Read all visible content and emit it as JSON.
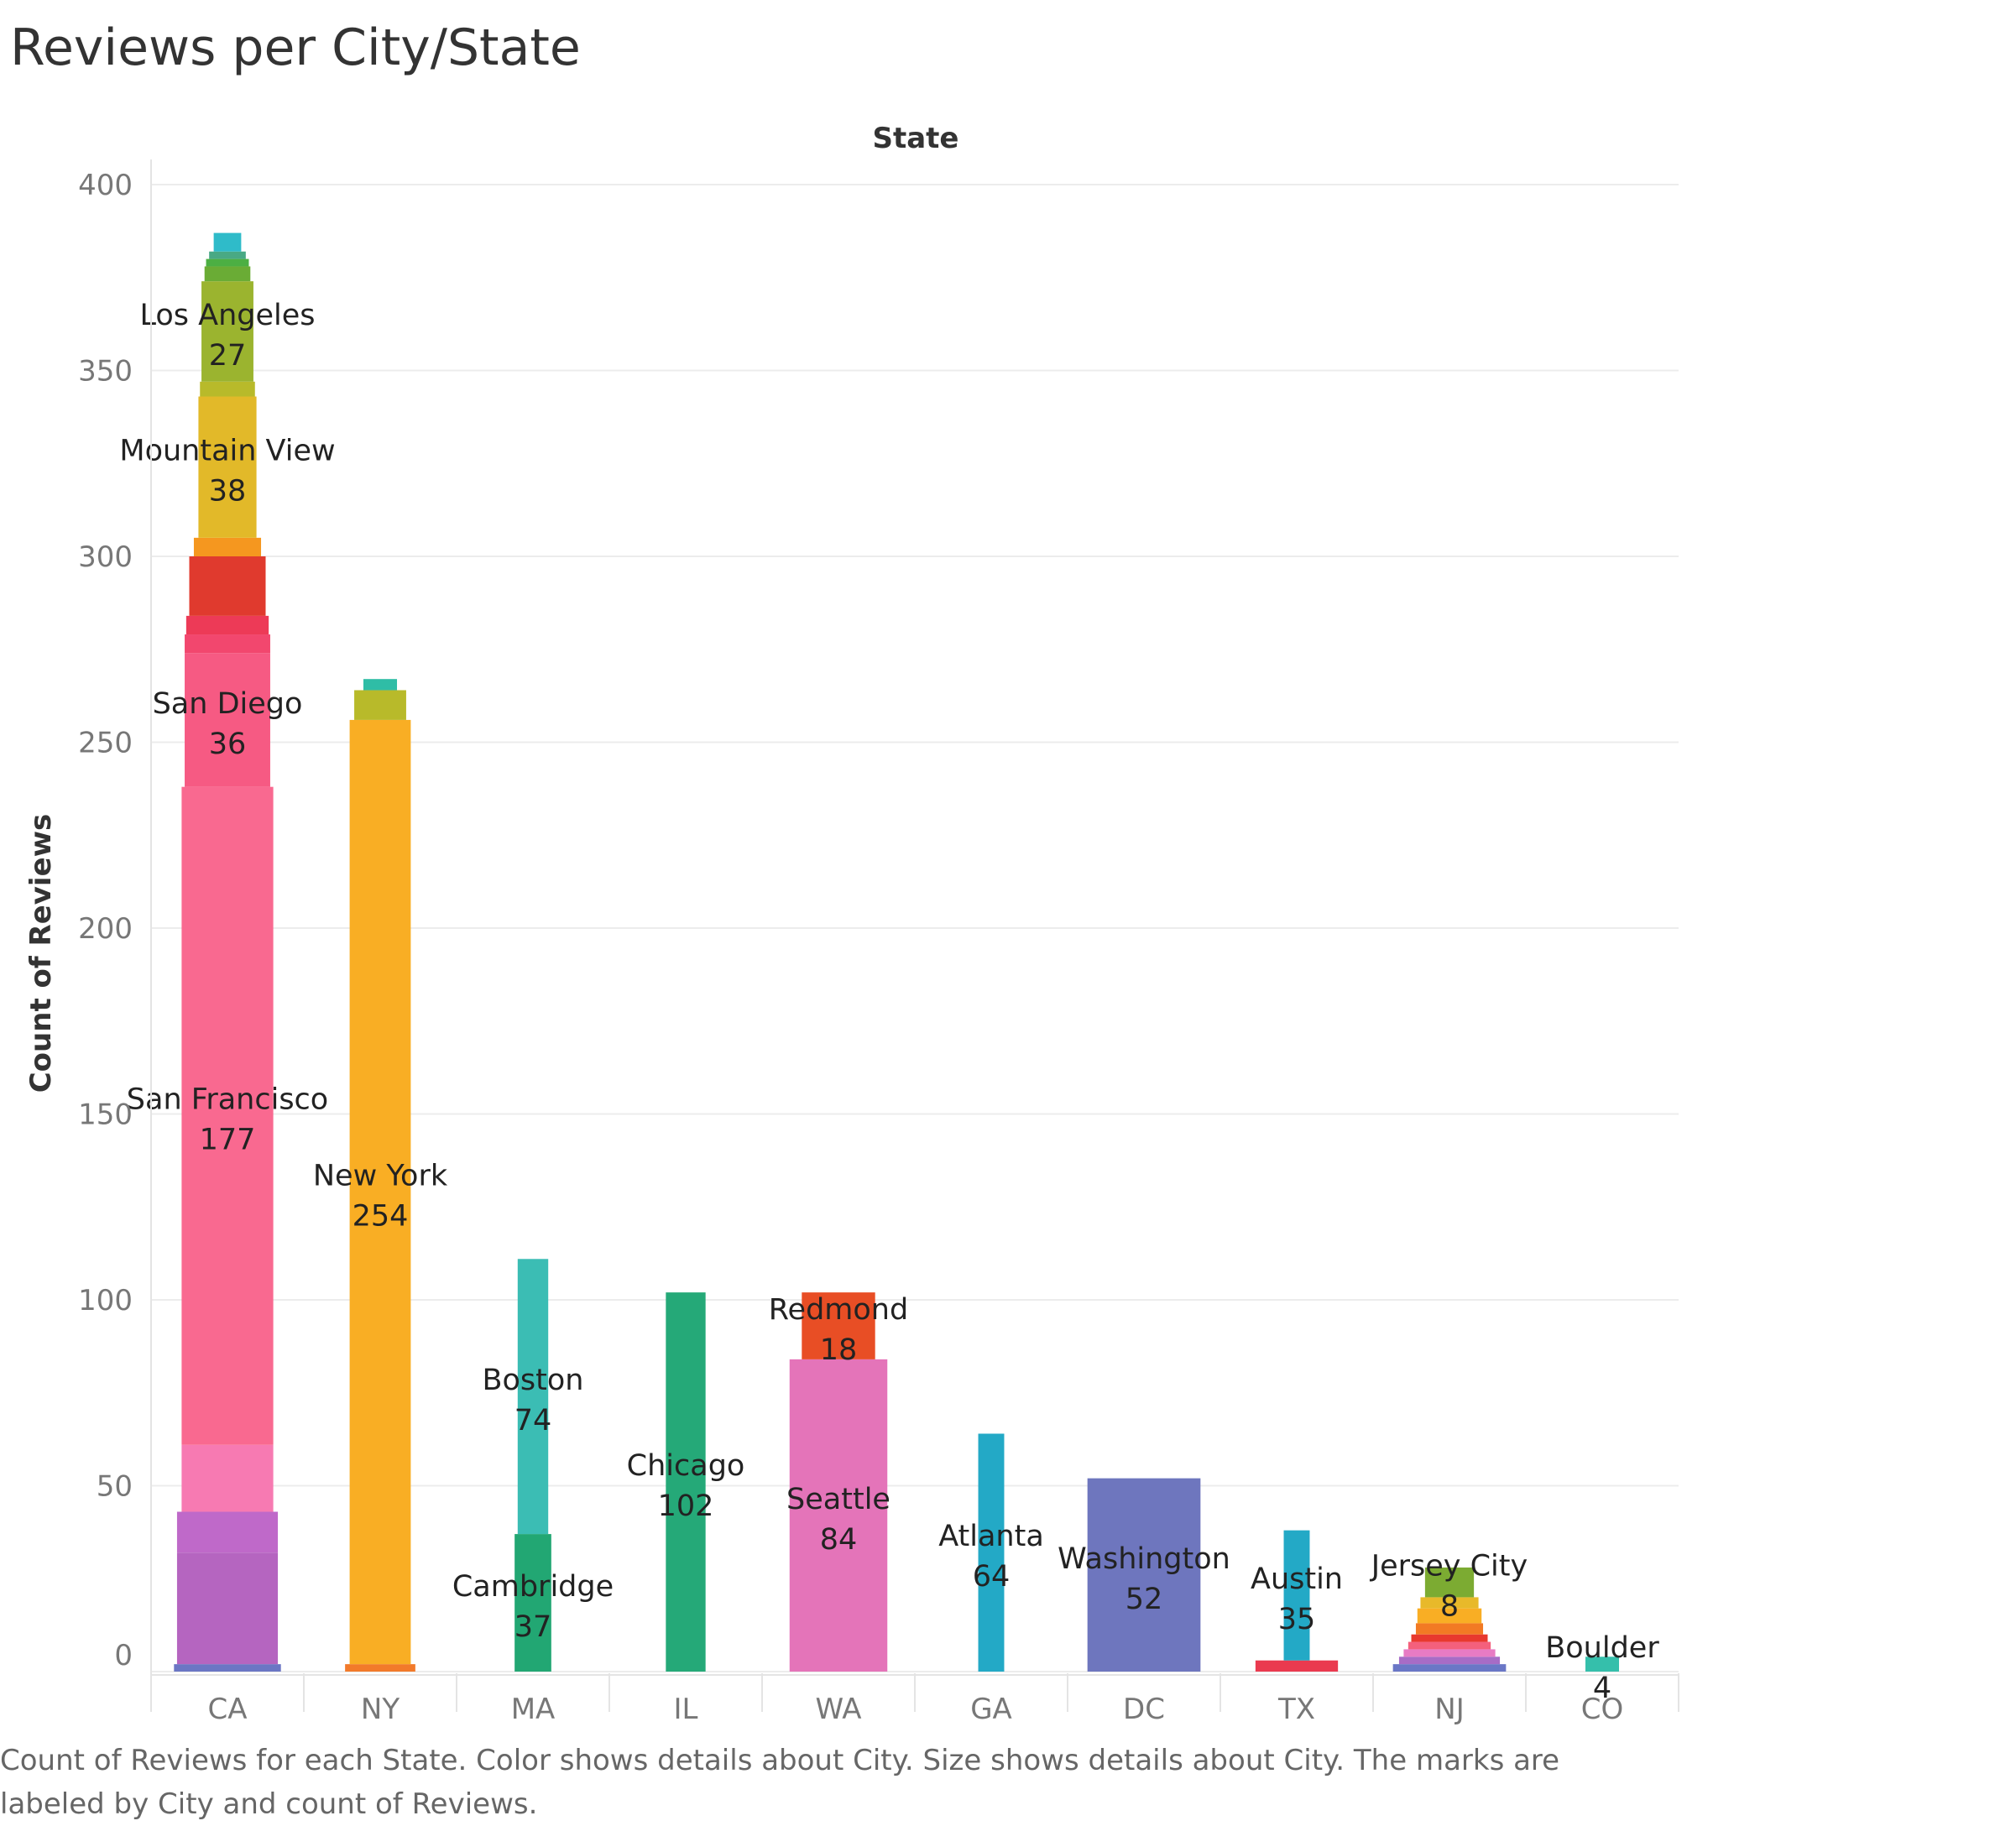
{
  "title": "Reviews per City/State",
  "caption": "Count of Reviews for each State.  Color shows details about City.  Size shows details about City.  The marks are labeled by City and count of Reviews.",
  "chart_data": {
    "type": "bar",
    "stacked": true,
    "column_header": "State",
    "xlabel": "",
    "ylabel": "Count of Reviews",
    "ylim": [
      0,
      400
    ],
    "yticks": [
      0,
      50,
      100,
      150,
      200,
      250,
      300,
      350,
      400
    ],
    "grid": true,
    "categories": [
      "CA",
      "NY",
      "MA",
      "IL",
      "WA",
      "GA",
      "DC",
      "TX",
      "NJ",
      "CO"
    ],
    "stacks": [
      {
        "state": "CA",
        "segments": [
          {
            "value": 2,
            "width": 0.7,
            "color": "#6b76c4"
          },
          {
            "value": 30,
            "width": 0.66,
            "color": "#b565c0"
          },
          {
            "value": 11,
            "width": 0.66,
            "color": "#bf69c9"
          },
          {
            "value": 18,
            "width": 0.6,
            "color": "#f77ab2"
          },
          {
            "value": 177,
            "width": 0.6,
            "color": "#f96990",
            "city": "San Francisco"
          },
          {
            "value": 36,
            "width": 0.56,
            "color": "#f65a83",
            "city": "San Diego"
          },
          {
            "value": 5,
            "width": 0.56,
            "color": "#f2476e"
          },
          {
            "value": 5,
            "width": 0.54,
            "color": "#ed3a57"
          },
          {
            "value": 16,
            "width": 0.5,
            "color": "#e03a2e"
          },
          {
            "value": 5,
            "width": 0.44,
            "color": "#f5971f"
          },
          {
            "value": 38,
            "width": 0.38,
            "color": "#e2b929",
            "city": "Mountain View"
          },
          {
            "value": 4,
            "width": 0.36,
            "color": "#b8ba2a"
          },
          {
            "value": 27,
            "width": 0.34,
            "color": "#9bb42f",
            "city": "Los Angeles"
          },
          {
            "value": 4,
            "width": 0.3,
            "color": "#6aac35"
          },
          {
            "value": 2,
            "width": 0.28,
            "color": "#4caf43"
          },
          {
            "value": 2,
            "width": 0.24,
            "color": "#49a984"
          },
          {
            "value": 5,
            "width": 0.18,
            "color": "#2fbbc9"
          }
        ]
      },
      {
        "state": "NY",
        "segments": [
          {
            "value": 2,
            "width": 0.46,
            "color": "#f27a2a"
          },
          {
            "value": 254,
            "width": 0.4,
            "color": "#f9ae24",
            "city": "New York"
          },
          {
            "value": 8,
            "width": 0.34,
            "color": "#b8ba2a"
          },
          {
            "value": 3,
            "width": 0.22,
            "color": "#2fbda6"
          }
        ]
      },
      {
        "state": "MA",
        "segments": [
          {
            "value": 37,
            "width": 0.24,
            "color": "#22a773",
            "city": "Cambridge"
          },
          {
            "value": 74,
            "width": 0.2,
            "color": "#3bbdb4",
            "city": "Boston"
          }
        ]
      },
      {
        "state": "IL",
        "segments": [
          {
            "value": 102,
            "width": 0.26,
            "color": "#25a978",
            "city": "Chicago"
          }
        ]
      },
      {
        "state": "WA",
        "segments": [
          {
            "value": 84,
            "width": 0.64,
            "color": "#e474b9",
            "city": "Seattle"
          },
          {
            "value": 18,
            "width": 0.48,
            "color": "#e84e25",
            "city": "Redmond"
          }
        ]
      },
      {
        "state": "GA",
        "segments": [
          {
            "value": 64,
            "width": 0.17,
            "color": "#23a9c6",
            "city": "Atlanta"
          }
        ]
      },
      {
        "state": "DC",
        "segments": [
          {
            "value": 52,
            "width": 0.74,
            "color": "#6e76be",
            "city": "Washington"
          }
        ]
      },
      {
        "state": "TX",
        "segments": [
          {
            "value": 3,
            "width": 0.54,
            "color": "#ea3a4f"
          },
          {
            "value": 35,
            "width": 0.17,
            "color": "#23a9c6",
            "city": "Austin"
          }
        ]
      },
      {
        "state": "NJ",
        "segments": [
          {
            "value": 2,
            "width": 0.74,
            "color": "#6a77c6"
          },
          {
            "value": 2,
            "width": 0.66,
            "color": "#a76cc6"
          },
          {
            "value": 2,
            "width": 0.6,
            "color": "#e77bc4"
          },
          {
            "value": 2,
            "width": 0.54,
            "color": "#f4607c"
          },
          {
            "value": 2,
            "width": 0.5,
            "color": "#e8392e"
          },
          {
            "value": 3,
            "width": 0.44,
            "color": "#f27a24"
          },
          {
            "value": 4,
            "width": 0.42,
            "color": "#f9ae24"
          },
          {
            "value": 3,
            "width": 0.38,
            "color": "#e8b92a"
          },
          {
            "value": 8,
            "width": 0.32,
            "color": "#7cab32",
            "city": "Jersey City"
          }
        ]
      },
      {
        "state": "CO",
        "segments": [
          {
            "value": 4,
            "width": 0.22,
            "color": "#35bfab",
            "city": "Boulder"
          }
        ]
      }
    ]
  }
}
